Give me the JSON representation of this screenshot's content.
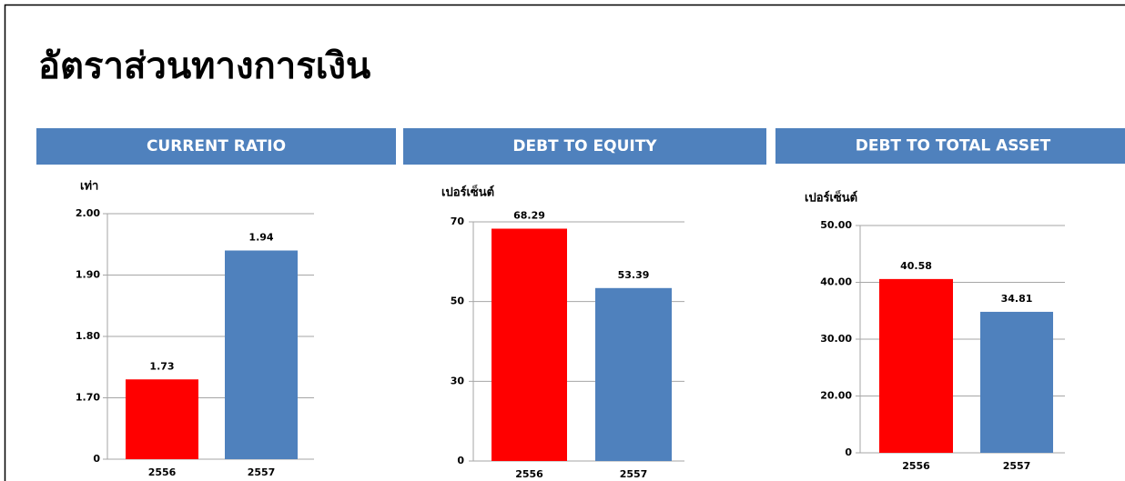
{
  "title": "อัตราส่วนทางการเงิน",
  "chart_data": [
    {
      "type": "bar",
      "title": "CURRENT RATIO",
      "y_label": "เท่า",
      "categories": [
        "2556",
        "2557"
      ],
      "values": [
        1.73,
        1.94
      ],
      "colors": [
        "#ff0000",
        "#4f81bd"
      ],
      "ylim": [
        0,
        2
      ],
      "yticks": [
        0,
        {
          "value": 1.7,
          "label": "1.70"
        },
        {
          "value": 1.8,
          "label": "1.80"
        },
        {
          "value": 1.9,
          "label": "1.90"
        },
        {
          "value": 2,
          "label": "2.00"
        }
      ],
      "grid": true
    },
    {
      "type": "bar",
      "title": "DEBT TO EQUITY",
      "y_label": "เปอร์เซ็นต์",
      "categories": [
        "2556",
        "2557"
      ],
      "values": [
        68.29,
        53.39
      ],
      "colors": [
        "#ff0000",
        "#4f81bd"
      ],
      "ylim": [
        0,
        70
      ],
      "yticks": [
        0,
        30,
        50,
        70
      ],
      "grid": true
    },
    {
      "type": "bar",
      "title": "DEBT TO TOTAL ASSET",
      "y_label": "เปอร์เซ็นต์",
      "categories": [
        "2556",
        "2557"
      ],
      "values": [
        40.58,
        34.81
      ],
      "colors": [
        "#ff0000",
        "#4f81bd"
      ],
      "ylim": [
        0,
        50
      ],
      "yticks": [
        0,
        {
          "value": 20,
          "label": "20.00"
        },
        {
          "value": 30,
          "label": "30.00"
        },
        {
          "value": 40,
          "label": "40.00"
        },
        {
          "value": 50,
          "label": "50.00"
        }
      ],
      "grid": true
    }
  ]
}
